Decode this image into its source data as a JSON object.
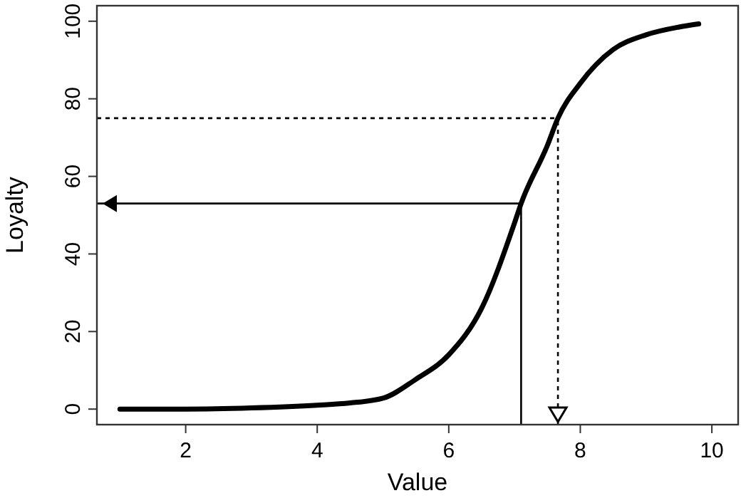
{
  "chart_data": {
    "type": "line",
    "xlabel": "Value",
    "ylabel": "Loyalty",
    "x": [
      1,
      2,
      3,
      4,
      4.5,
      5,
      5.5,
      6,
      6.5,
      7,
      7.1,
      7.5,
      7.66,
      8,
      8.5,
      9,
      9.5,
      9.8
    ],
    "series": [
      {
        "color": "#000000",
        "values": [
          0,
          0,
          0.3,
          1,
          1.6,
          2.8,
          7.7,
          14,
          26,
          48,
          53,
          68,
          75,
          84,
          92.7,
          96.5,
          98.5,
          99.3
        ]
      }
    ],
    "xlim": [
      0.65,
      10.4
    ],
    "ylim": [
      -4,
      104
    ],
    "xticks": [
      2,
      4,
      6,
      8,
      10
    ],
    "yticks": [
      0,
      20,
      40,
      60,
      80,
      100
    ],
    "marker": "none",
    "line_style": "solid",
    "ref_lines": [
      {
        "axis": "y",
        "value": 53,
        "line_style": "solid",
        "color": "#000000"
      },
      {
        "axis": "x",
        "value": 7.1,
        "line_style": "solid",
        "color": "#000000"
      },
      {
        "axis": "y",
        "value": 75,
        "line_style": "dotted",
        "color": "#000000"
      },
      {
        "axis": "x",
        "value": 7.66,
        "line_style": "dotted",
        "color": "#000000"
      }
    ]
  }
}
